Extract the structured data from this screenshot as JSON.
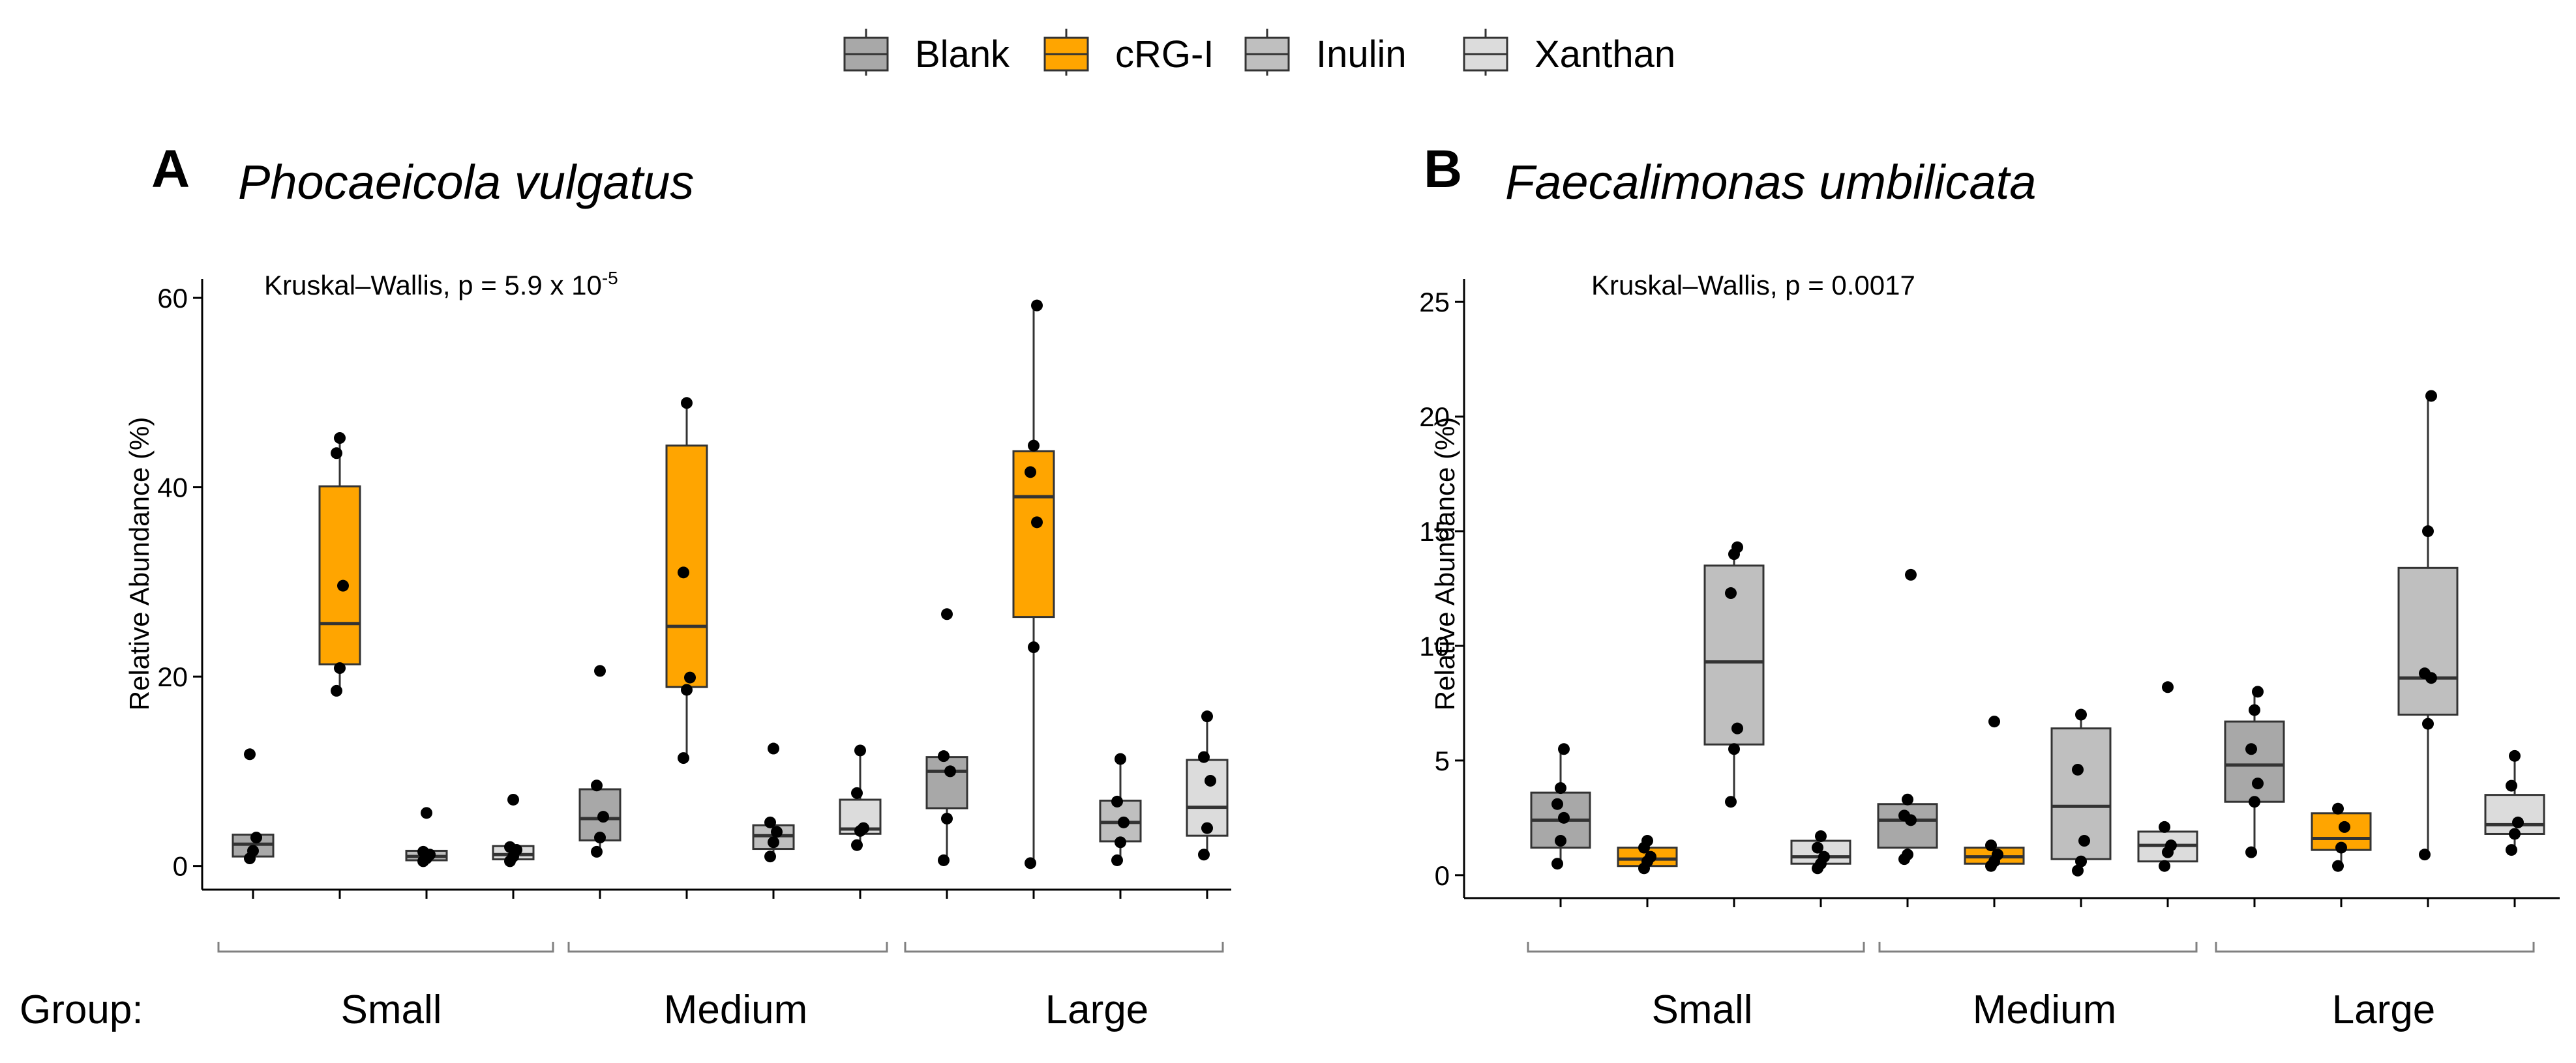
{
  "legend": {
    "items": [
      {
        "label": "Blank",
        "color": "#a8a8a8"
      },
      {
        "label": "cRG-I",
        "color": "#ffa500"
      },
      {
        "label": "Inulin",
        "color": "#bfbfbf"
      },
      {
        "label": "Xanthan",
        "color": "#dcdcdc"
      }
    ]
  },
  "group_axis_label": "Group:",
  "colors": {
    "axis": "#000000",
    "box_stroke": "#333333",
    "bracket": "#808080"
  },
  "chart_data": [
    {
      "type": "boxplot",
      "panel_letter": "A",
      "title": "Phocaeicola vulgatus",
      "ylabel": "Relative Abundance (%)",
      "ylim": [
        -2.5,
        62
      ],
      "yticks": [
        0,
        20,
        40,
        60
      ],
      "stat_prefix": "Kruskal–Wallis, p = 5.9 x 10",
      "stat_exponent": "-5",
      "groups": [
        "Small",
        "Medium",
        "Large"
      ],
      "series": [
        "Blank",
        "cRG-I",
        "Inulin",
        "Xanthan"
      ],
      "boxes": [
        {
          "group": "Small",
          "series": "Blank",
          "q1": 1.0,
          "median": 2.3,
          "q3": 3.3,
          "whisker_low": 0.6,
          "whisker_high": 3.3,
          "points": [
            0.8,
            1.6,
            3.0,
            11.8
          ]
        },
        {
          "group": "Small",
          "series": "cRG-I",
          "q1": 21.3,
          "median": 25.6,
          "q3": 40.1,
          "whisker_low": 18.5,
          "whisker_high": 45.2,
          "points": [
            18.5,
            20.9,
            29.6,
            43.6,
            45.2
          ]
        },
        {
          "group": "Small",
          "series": "Inulin",
          "q1": 0.6,
          "median": 1.0,
          "q3": 1.6,
          "whisker_low": 0.4,
          "whisker_high": 1.6,
          "points": [
            0.5,
            0.8,
            1.2,
            1.5,
            5.6
          ]
        },
        {
          "group": "Small",
          "series": "Xanthan",
          "q1": 0.7,
          "median": 1.2,
          "q3": 2.1,
          "whisker_low": 0.5,
          "whisker_high": 2.1,
          "points": [
            0.5,
            1.0,
            1.7,
            2.0,
            7.0
          ]
        },
        {
          "group": "Medium",
          "series": "Blank",
          "q1": 2.7,
          "median": 5.0,
          "q3": 8.1,
          "whisker_low": 1.5,
          "whisker_high": 8.1,
          "points": [
            1.5,
            3.0,
            5.2,
            8.5,
            20.6
          ]
        },
        {
          "group": "Medium",
          "series": "cRG-I",
          "q1": 18.9,
          "median": 25.3,
          "q3": 44.4,
          "whisker_low": 11.4,
          "whisker_high": 48.9,
          "points": [
            11.4,
            18.6,
            19.9,
            31.0,
            48.9
          ]
        },
        {
          "group": "Medium",
          "series": "Inulin",
          "q1": 1.8,
          "median": 3.2,
          "q3": 4.3,
          "whisker_low": 1.0,
          "whisker_high": 4.3,
          "points": [
            1.0,
            2.5,
            3.6,
            4.6,
            12.4
          ]
        },
        {
          "group": "Medium",
          "series": "Xanthan",
          "q1": 3.4,
          "median": 3.9,
          "q3": 7.0,
          "whisker_low": 2.2,
          "whisker_high": 12.2,
          "points": [
            2.2,
            3.7,
            4.0,
            7.7,
            12.2
          ]
        },
        {
          "group": "Large",
          "series": "Blank",
          "q1": 6.1,
          "median": 10.0,
          "q3": 11.5,
          "whisker_low": 0.6,
          "whisker_high": 11.5,
          "points": [
            0.6,
            5.0,
            10.0,
            11.6,
            26.6
          ]
        },
        {
          "group": "Large",
          "series": "cRG-I",
          "q1": 26.3,
          "median": 39.0,
          "q3": 43.8,
          "whisker_low": 0.3,
          "whisker_high": 59.2,
          "points": [
            0.3,
            23.1,
            36.3,
            41.6,
            44.4,
            59.2
          ]
        },
        {
          "group": "Large",
          "series": "Inulin",
          "q1": 2.6,
          "median": 4.6,
          "q3": 6.9,
          "whisker_low": 0.6,
          "whisker_high": 11.3,
          "points": [
            0.6,
            2.5,
            4.6,
            6.8,
            11.3
          ]
        },
        {
          "group": "Large",
          "series": "Xanthan",
          "q1": 3.2,
          "median": 6.2,
          "q3": 11.2,
          "whisker_low": 1.2,
          "whisker_high": 15.8,
          "points": [
            1.2,
            4.0,
            9.0,
            11.5,
            15.8
          ]
        }
      ]
    },
    {
      "type": "boxplot",
      "panel_letter": "B",
      "title": "Faecalimonas umbilicata",
      "ylabel": "Relative Abundance (%)",
      "ylim": [
        -1,
        26
      ],
      "yticks": [
        0,
        5,
        10,
        15,
        20,
        25
      ],
      "stat_prefix": "Kruskal–Wallis, p = 0.0017",
      "stat_exponent": "",
      "groups": [
        "Small",
        "Medium",
        "Large"
      ],
      "series": [
        "Blank",
        "cRG-I",
        "Inulin",
        "Xanthan"
      ],
      "boxes": [
        {
          "group": "Small",
          "series": "Blank",
          "q1": 1.2,
          "median": 2.4,
          "q3": 3.6,
          "whisker_low": 0.5,
          "whisker_high": 5.5,
          "points": [
            0.5,
            1.5,
            2.5,
            3.1,
            3.8,
            5.5
          ]
        },
        {
          "group": "Small",
          "series": "cRG-I",
          "q1": 0.4,
          "median": 0.7,
          "q3": 1.2,
          "whisker_low": 0.3,
          "whisker_high": 1.5,
          "points": [
            0.3,
            0.6,
            0.8,
            1.2,
            1.5
          ]
        },
        {
          "group": "Small",
          "series": "Inulin",
          "q1": 5.7,
          "median": 9.3,
          "q3": 13.5,
          "whisker_low": 3.2,
          "whisker_high": 14.3,
          "points": [
            3.2,
            5.5,
            6.4,
            12.3,
            14.0,
            14.3
          ]
        },
        {
          "group": "Small",
          "series": "Xanthan",
          "q1": 0.5,
          "median": 0.8,
          "q3": 1.5,
          "whisker_low": 0.3,
          "whisker_high": 1.7,
          "points": [
            0.3,
            0.5,
            0.8,
            1.2,
            1.7
          ]
        },
        {
          "group": "Medium",
          "series": "Blank",
          "q1": 1.2,
          "median": 2.4,
          "q3": 3.1,
          "whisker_low": 0.7,
          "whisker_high": 3.3,
          "points": [
            0.7,
            0.9,
            2.4,
            2.6,
            3.3,
            13.1
          ]
        },
        {
          "group": "Medium",
          "series": "cRG-I",
          "q1": 0.5,
          "median": 0.8,
          "q3": 1.2,
          "whisker_low": 0.4,
          "whisker_high": 1.4,
          "points": [
            0.4,
            0.6,
            0.9,
            1.3,
            6.7
          ]
        },
        {
          "group": "Medium",
          "series": "Inulin",
          "q1": 0.7,
          "median": 3.0,
          "q3": 6.4,
          "whisker_low": 0.2,
          "whisker_high": 7.0,
          "points": [
            0.2,
            0.6,
            1.5,
            4.6,
            7.0
          ]
        },
        {
          "group": "Medium",
          "series": "Xanthan",
          "q1": 0.6,
          "median": 1.3,
          "q3": 1.9,
          "whisker_low": 0.4,
          "whisker_high": 2.1,
          "points": [
            0.4,
            1.0,
            1.3,
            2.1,
            8.2
          ]
        },
        {
          "group": "Large",
          "series": "Blank",
          "q1": 3.2,
          "median": 4.8,
          "q3": 6.7,
          "whisker_low": 1.0,
          "whisker_high": 8.0,
          "points": [
            1.0,
            3.2,
            4.0,
            5.5,
            7.2,
            8.0
          ]
        },
        {
          "group": "Large",
          "series": "cRG-I",
          "q1": 1.1,
          "median": 1.6,
          "q3": 2.7,
          "whisker_low": 0.4,
          "whisker_high": 3.0,
          "points": [
            0.4,
            1.2,
            2.1,
            2.9
          ]
        },
        {
          "group": "Large",
          "series": "Inulin",
          "q1": 7.0,
          "median": 8.6,
          "q3": 13.4,
          "whisker_low": 0.9,
          "whisker_high": 20.9,
          "points": [
            0.9,
            6.6,
            8.6,
            8.8,
            15.0,
            20.9
          ]
        },
        {
          "group": "Large",
          "series": "Xanthan",
          "q1": 1.8,
          "median": 2.2,
          "q3": 3.5,
          "whisker_low": 1.1,
          "whisker_high": 5.2,
          "points": [
            1.1,
            1.8,
            2.3,
            3.9,
            5.2
          ]
        }
      ]
    }
  ]
}
